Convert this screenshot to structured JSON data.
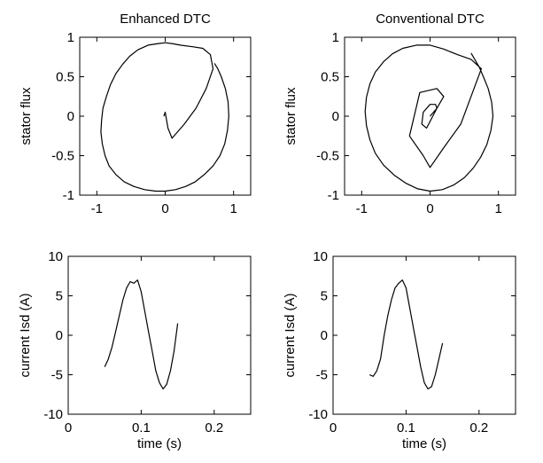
{
  "chart_data": [
    {
      "type": "line",
      "title": "Enhanced DTC",
      "xlabel": "",
      "ylabel": "stator flux",
      "xlim": [
        -1.25,
        1.25
      ],
      "ylim": [
        -1,
        1
      ],
      "xticks": [
        -1,
        0,
        1
      ],
      "xtick_labels": [
        "-1",
        "0",
        "1"
      ],
      "yticks": [
        -1,
        -0.5,
        0,
        0.5,
        1
      ],
      "ytick_labels": [
        "-1",
        "-0.5",
        "0",
        "0.5",
        "1"
      ],
      "grid": false,
      "series": [
        {
          "color": "#000000",
          "x": [
            -0.02,
            0.0,
            0.04,
            0.1,
            0.28,
            0.45,
            0.6,
            0.7,
            0.66,
            0.55,
            0.4,
            0.22,
            0.1,
            0.0,
            -0.1,
            -0.25,
            -0.4,
            -0.52,
            -0.62,
            -0.72,
            -0.8,
            -0.86,
            -0.91,
            -0.93,
            -0.94,
            -0.92,
            -0.88,
            -0.82,
            -0.72,
            -0.6,
            -0.46,
            -0.3,
            -0.14,
            0.0,
            0.15,
            0.3,
            0.44,
            0.57,
            0.7,
            0.8,
            0.87,
            0.91,
            0.93,
            0.92,
            0.88,
            0.82,
            0.77,
            0.72
          ],
          "y": [
            0.0,
            0.05,
            -0.15,
            -0.28,
            -0.1,
            0.1,
            0.35,
            0.6,
            0.78,
            0.86,
            0.88,
            0.9,
            0.92,
            0.93,
            0.92,
            0.9,
            0.84,
            0.76,
            0.66,
            0.54,
            0.4,
            0.25,
            0.1,
            -0.05,
            -0.2,
            -0.35,
            -0.5,
            -0.63,
            -0.74,
            -0.83,
            -0.89,
            -0.93,
            -0.95,
            -0.95,
            -0.93,
            -0.89,
            -0.83,
            -0.74,
            -0.63,
            -0.5,
            -0.35,
            -0.18,
            0.0,
            0.18,
            0.35,
            0.5,
            0.6,
            0.67
          ]
        }
      ]
    },
    {
      "type": "line",
      "title": "Conventional DTC",
      "xlabel": "",
      "ylabel": "stator flux",
      "xlim": [
        -1.25,
        1.25
      ],
      "ylim": [
        -1,
        1
      ],
      "xticks": [
        -1,
        0,
        1
      ],
      "xtick_labels": [
        "-1",
        "0",
        "1"
      ],
      "yticks": [
        -1,
        -0.5,
        0,
        0.5,
        1
      ],
      "ytick_labels": [
        "-1",
        "-0.5",
        "0",
        "0.5",
        "1"
      ],
      "grid": false,
      "series": [
        {
          "color": "#000000",
          "x": [
            0.0,
            0.05,
            0.1,
            0.08,
            0.0,
            -0.1,
            -0.12,
            -0.05,
            0.1,
            0.2,
            0.1,
            -0.15,
            -0.3,
            -0.1,
            0.0,
            0.2,
            0.45,
            0.75,
            0.6,
            0.4,
            0.2,
            0.0,
            -0.2,
            -0.4,
            -0.55,
            -0.68,
            -0.8,
            -0.88,
            -0.93,
            -0.95,
            -0.93,
            -0.88,
            -0.8,
            -0.68,
            -0.52,
            -0.35,
            -0.18,
            0.0,
            0.18,
            0.35,
            0.5,
            0.63,
            0.74,
            0.83,
            0.89,
            0.92,
            0.9,
            0.85,
            0.78,
            0.72,
            0.6
          ],
          "y": [
            0.0,
            0.05,
            0.1,
            0.15,
            0.15,
            0.05,
            -0.1,
            -0.15,
            0.1,
            0.25,
            0.35,
            0.3,
            -0.25,
            -0.5,
            -0.65,
            -0.4,
            -0.1,
            0.6,
            0.72,
            0.78,
            0.85,
            0.9,
            0.9,
            0.86,
            0.79,
            0.69,
            0.56,
            0.41,
            0.24,
            0.06,
            -0.12,
            -0.3,
            -0.47,
            -0.62,
            -0.75,
            -0.85,
            -0.92,
            -0.95,
            -0.93,
            -0.87,
            -0.78,
            -0.66,
            -0.52,
            -0.36,
            -0.18,
            0.0,
            0.18,
            0.35,
            0.5,
            0.62,
            0.8
          ]
        }
      ]
    },
    {
      "type": "line",
      "title": "",
      "xlabel": "time (s)",
      "ylabel": "current  Isd  (A)",
      "xlim": [
        0,
        0.25
      ],
      "ylim": [
        -10,
        10
      ],
      "xticks": [
        0,
        0.1,
        0.2
      ],
      "xtick_labels": [
        "0",
        "0.1",
        "0.2"
      ],
      "yticks": [
        -10,
        -5,
        0,
        5,
        10
      ],
      "ytick_labels": [
        "-10",
        "-5",
        "0",
        "5",
        "10"
      ],
      "grid": false,
      "series": [
        {
          "color": "#000000",
          "x": [
            0.05,
            0.055,
            0.06,
            0.065,
            0.07,
            0.075,
            0.08,
            0.085,
            0.09,
            0.095,
            0.1,
            0.105,
            0.11,
            0.115,
            0.12,
            0.125,
            0.13,
            0.135,
            0.14,
            0.145,
            0.15
          ],
          "y": [
            -4.0,
            -3.0,
            -1.5,
            0.5,
            2.5,
            4.5,
            6.0,
            6.8,
            6.6,
            7.0,
            5.5,
            3.0,
            0.5,
            -2.0,
            -4.5,
            -6.0,
            -6.8,
            -6.2,
            -4.5,
            -2.0,
            1.5
          ]
        }
      ]
    },
    {
      "type": "line",
      "title": "",
      "xlabel": "time (s)",
      "ylabel": "current  Isd  (A)",
      "xlim": [
        0,
        0.25
      ],
      "ylim": [
        -10,
        10
      ],
      "xticks": [
        0,
        0.1,
        0.2
      ],
      "xtick_labels": [
        "0",
        "0.1",
        "0.2"
      ],
      "yticks": [
        -10,
        -5,
        0,
        5,
        10
      ],
      "ytick_labels": [
        "-10",
        "-5",
        "0",
        "5",
        "10"
      ],
      "grid": false,
      "series": [
        {
          "color": "#000000",
          "x": [
            0.05,
            0.055,
            0.06,
            0.065,
            0.07,
            0.075,
            0.08,
            0.085,
            0.09,
            0.095,
            0.1,
            0.105,
            0.11,
            0.115,
            0.12,
            0.125,
            0.13,
            0.135,
            0.14,
            0.145,
            0.15
          ],
          "y": [
            -5.0,
            -5.2,
            -4.5,
            -3.0,
            0.0,
            2.5,
            4.5,
            6.0,
            6.6,
            7.0,
            6.0,
            3.5,
            1.0,
            -1.5,
            -4.0,
            -6.0,
            -6.8,
            -6.5,
            -5.0,
            -3.0,
            -1.0
          ]
        }
      ]
    }
  ]
}
